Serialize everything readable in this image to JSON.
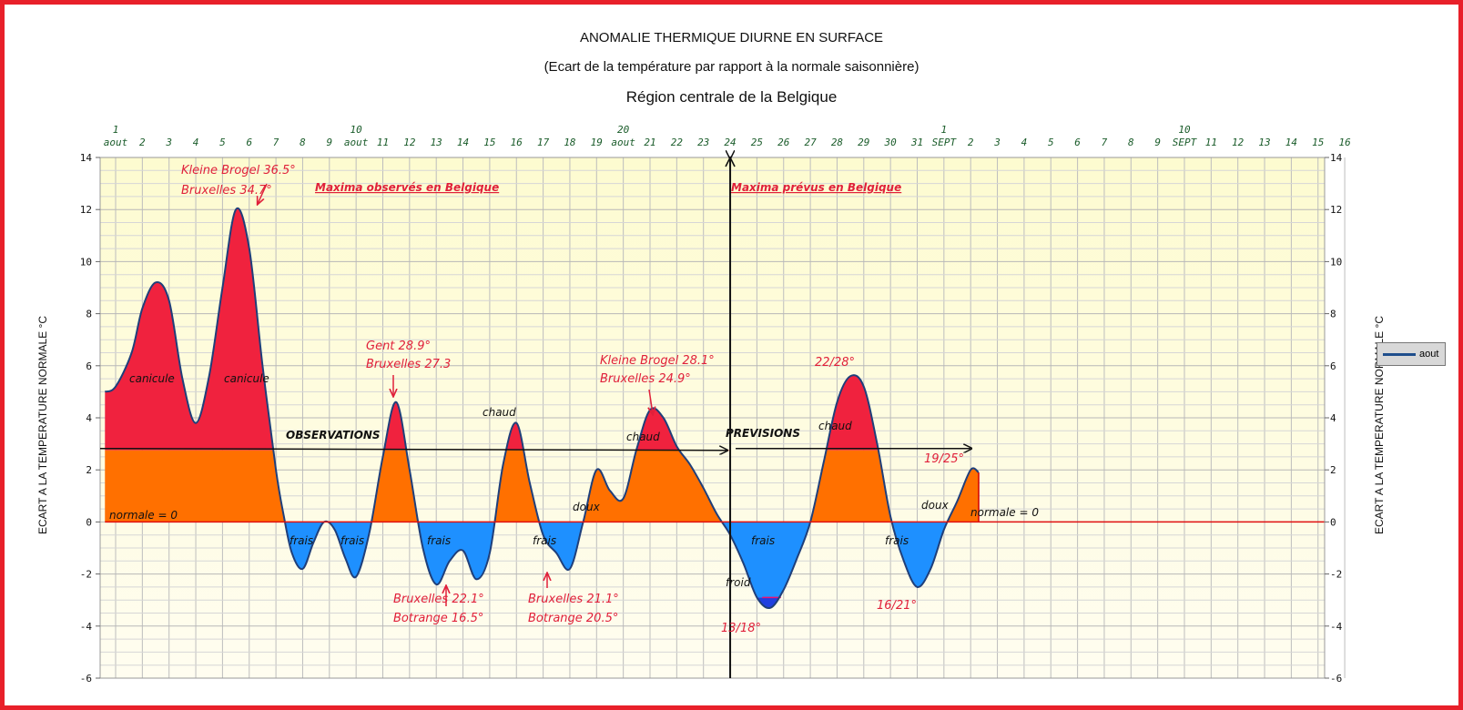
{
  "chart_data": {
    "type": "area",
    "title": "ANOMALIE THERMIQUE DIURNE EN SURFACE",
    "subtitle": "(Ecart de la température par rapport à la normale saisonnière)",
    "subtitle2": "Région centrale de la Belgique",
    "ylabel_left": "ECART A LA TEMPERATURE NORMALE  °C",
    "ylabel_right": "ECART A LA TEMPERATURE NORMALE  °C",
    "ylim": [
      -6,
      14
    ],
    "yticks": [
      14,
      12,
      10,
      8,
      6,
      4,
      2,
      0,
      -2,
      -4,
      -6
    ],
    "grid": true,
    "legend": {
      "label": "aout",
      "position": "right"
    },
    "x_top_ticks": [
      {
        "day": 1,
        "label": "1"
      },
      {
        "day": 2,
        "label": "2"
      },
      {
        "day": 3,
        "label": "3"
      },
      {
        "day": 4,
        "label": "4"
      },
      {
        "day": 5,
        "label": "5"
      },
      {
        "day": 6,
        "label": "6"
      },
      {
        "day": 7,
        "label": "7"
      },
      {
        "day": 8,
        "label": "8"
      },
      {
        "day": 9,
        "label": "9"
      },
      {
        "day": 10,
        "label": "10"
      },
      {
        "day": 11,
        "label": "11"
      },
      {
        "day": 12,
        "label": "12"
      },
      {
        "day": 13,
        "label": "13"
      },
      {
        "day": 14,
        "label": "14"
      },
      {
        "day": 15,
        "label": "15"
      },
      {
        "day": 16,
        "label": "16"
      },
      {
        "day": 17,
        "label": "17"
      },
      {
        "day": 18,
        "label": "18"
      },
      {
        "day": 19,
        "label": "19"
      },
      {
        "day": 20,
        "label": "20"
      },
      {
        "day": 21,
        "label": "21"
      },
      {
        "day": 22,
        "label": "22"
      },
      {
        "day": 23,
        "label": "23"
      },
      {
        "day": 24,
        "label": "24"
      },
      {
        "day": 25,
        "label": "25"
      },
      {
        "day": 26,
        "label": "26"
      },
      {
        "day": 27,
        "label": "27"
      },
      {
        "day": 28,
        "label": "28"
      },
      {
        "day": 29,
        "label": "29"
      },
      {
        "day": 30,
        "label": "30"
      },
      {
        "day": 31,
        "label": "31"
      },
      {
        "day": 32,
        "label": "1"
      },
      {
        "day": 33,
        "label": "2"
      },
      {
        "day": 34,
        "label": "3"
      },
      {
        "day": 35,
        "label": "4"
      },
      {
        "day": 36,
        "label": "5"
      },
      {
        "day": 37,
        "label": "6"
      },
      {
        "day": 38,
        "label": "7"
      },
      {
        "day": 39,
        "label": "8"
      },
      {
        "day": 40,
        "label": "9"
      },
      {
        "day": 41,
        "label": "10"
      },
      {
        "day": 42,
        "label": "11"
      },
      {
        "day": 43,
        "label": "12"
      },
      {
        "day": 44,
        "label": "13"
      },
      {
        "day": 45,
        "label": "14"
      },
      {
        "day": 46,
        "label": "15"
      },
      {
        "day": 47,
        "label": "16"
      }
    ],
    "month_labels": [
      {
        "day": 1,
        "top": "1",
        "bottom": "aout"
      },
      {
        "day": 10,
        "top": "10",
        "bottom": "aout"
      },
      {
        "day": 20,
        "top": "20",
        "bottom": "aout"
      },
      {
        "day": 32,
        "top": "1",
        "bottom": "SEPT"
      },
      {
        "day": 41,
        "top": "10",
        "bottom": "SEPT"
      }
    ],
    "series": [
      {
        "name": "aout",
        "x": [
          0.6,
          1,
          1.6,
          2,
          2.5,
          3,
          3.5,
          4,
          4.5,
          5,
          5.5,
          6,
          6.5,
          7,
          7.3,
          7.6,
          8,
          8.4,
          8.8,
          9.2,
          9.6,
          10,
          10.5,
          11,
          11.5,
          12,
          12.5,
          13,
          13.5,
          14,
          14.5,
          15,
          15.5,
          16,
          16.5,
          17,
          17.5,
          18,
          18.5,
          19,
          19.5,
          20,
          20.5,
          21,
          21.5,
          22,
          22.5,
          23,
          23.5,
          24,
          24.5,
          25,
          25.5,
          26,
          26.5,
          27,
          27.5,
          28,
          28.5,
          29,
          29.5,
          30,
          30.5,
          31,
          31.5,
          32,
          32.5,
          33,
          33.3
        ],
        "y": [
          5.0,
          5.2,
          6.5,
          8.2,
          9.2,
          8.5,
          5.5,
          3.8,
          5.6,
          9.0,
          12.0,
          10.5,
          6.0,
          2.0,
          0.2,
          -1.2,
          -1.8,
          -0.8,
          0.0,
          -0.3,
          -1.4,
          -2.1,
          -0.4,
          2.5,
          4.6,
          2.0,
          -1.0,
          -2.4,
          -1.5,
          -1.1,
          -2.2,
          -1.2,
          2.2,
          3.8,
          1.5,
          -0.5,
          -1.2,
          -1.8,
          0.0,
          2.0,
          1.2,
          0.9,
          2.8,
          4.3,
          4.0,
          2.9,
          2.2,
          1.3,
          0.3,
          -0.5,
          -1.6,
          -2.9,
          -3.3,
          -2.6,
          -1.4,
          0.0,
          2.3,
          4.6,
          5.6,
          5.2,
          3.0,
          0.2,
          -1.5,
          -2.5,
          -1.8,
          -0.3,
          0.8,
          2.0,
          1.9
        ]
      }
    ],
    "annotations": {
      "obs_title": "Maxima observés en Belgique",
      "prev_title": "Maxima prévus en Belgique",
      "observations": "OBSERVATIONS",
      "previsions": "PREVISIONS",
      "normale1": "normale = 0",
      "normale2": "normale = 0",
      "canicule1": "canicule",
      "canicule2": "canicule",
      "peak1_a": "Kleine Brogel 36.5°",
      "peak1_b": "Bruxelles 34.7°",
      "peak2_a": "Gent 28.9°",
      "peak2_b": "Bruxelles 27.3",
      "peak3_a": "Kleine Brogel 28.1°",
      "peak3_b": "Bruxelles 24.9°",
      "chaud1": "chaud",
      "chaud2": "chaud",
      "chaud3": "chaud",
      "doux1": "doux",
      "doux2": "doux",
      "frais1": "frais",
      "frais2": "frais",
      "frais3": "frais",
      "frais4": "frais",
      "frais5": "frais",
      "frais6": "frais",
      "froid": "froid",
      "low1_a": "Bruxelles 22.1°",
      "low1_b": "Botrange 16.5°",
      "low2_a": "Bruxelles 21.1°",
      "low2_b": "Botrange 20.5°",
      "f1": "22/28°",
      "f2": "19/25°",
      "f3": "13/18°",
      "f4": "16/21°"
    },
    "colors": {
      "hot": "#f0223e",
      "warm": "#ff7000",
      "cool": "#1e90ff",
      "cold": "#2040e0",
      "line": "#1f3f7a",
      "plot_bg_top": "#fdfbd0",
      "plot_bg_bottom": "#fffdf0",
      "annotation": "#e0203a"
    }
  }
}
